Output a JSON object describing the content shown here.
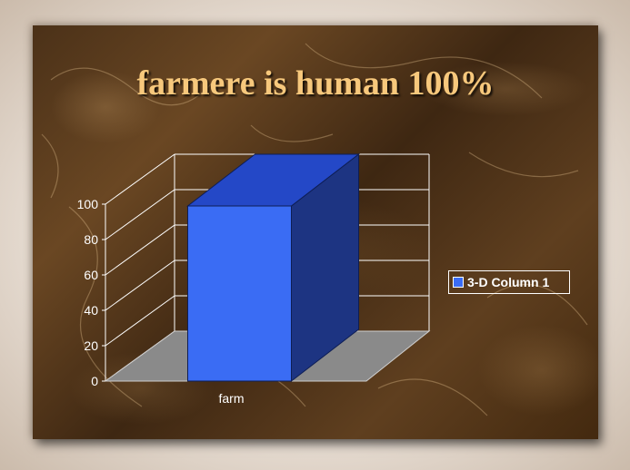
{
  "slide": {
    "title": "farmere is human 100%"
  },
  "chart_data": {
    "type": "bar",
    "title": "farmere is human 100%",
    "categories": [
      "farm"
    ],
    "series": [
      {
        "name": "3-D Column 1",
        "values": [
          100
        ]
      }
    ],
    "ylim": [
      0,
      100
    ],
    "yticks": [
      "0",
      "20",
      "40",
      "60",
      "80",
      "100"
    ],
    "xlabel": "",
    "ylabel": "",
    "grid": true,
    "legend_position": "right",
    "colors": {
      "bar_front": "#3a6cf4",
      "bar_side": "#1d3482",
      "bar_top": "#2448c7",
      "floor": "#8a8a8a",
      "grid": "#ffffff"
    }
  }
}
